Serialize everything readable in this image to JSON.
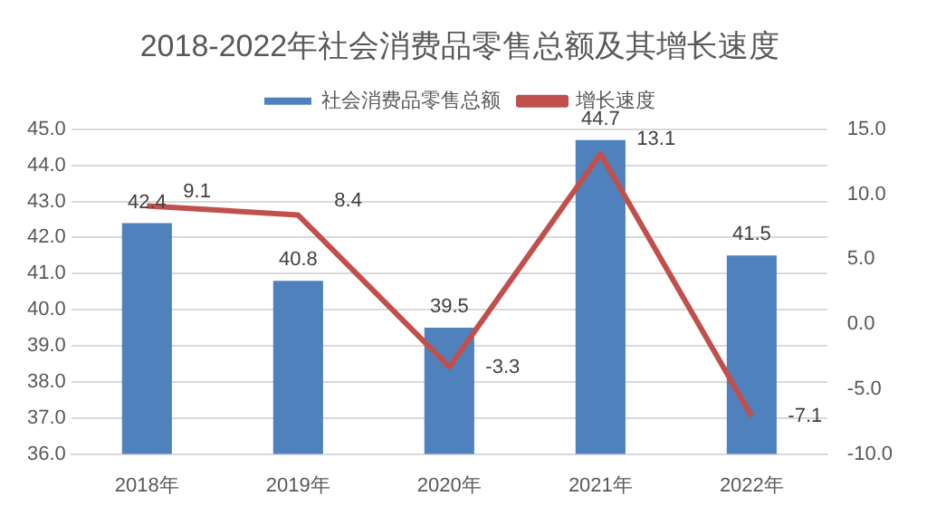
{
  "chart_data": {
    "type": "bar",
    "title": "2018-2022年社会消费品零售总额及其增长速度",
    "categories": [
      "2018年",
      "2019年",
      "2020年",
      "2021年",
      "2022年"
    ],
    "series": [
      {
        "name": "社会消费品零售总额",
        "color": "#4f81bd",
        "values": [
          42.4,
          40.8,
          39.5,
          44.7,
          41.5
        ]
      },
      {
        "name": "增长速度",
        "type": "line",
        "axis": "y2",
        "color": "#c0504d",
        "values": [
          9.1,
          8.4,
          -3.3,
          13.1,
          -7.1
        ]
      }
    ],
    "ylim": [
      36,
      45
    ],
    "yticks": [
      {
        "value": 36,
        "label": "36.0"
      },
      {
        "value": 37,
        "label": "37.0"
      },
      {
        "value": 38,
        "label": "38.0"
      },
      {
        "value": 39,
        "label": "39.0"
      },
      {
        "value": 40,
        "label": "40.0"
      },
      {
        "value": 41,
        "label": "41.0"
      },
      {
        "value": 42,
        "label": "42.0"
      },
      {
        "value": 43,
        "label": "43.0"
      },
      {
        "value": 44,
        "label": "44.0"
      },
      {
        "value": 45,
        "label": "45.0"
      }
    ],
    "y2lim": [
      -10,
      15
    ],
    "y2ticks": [
      {
        "value": -10,
        "label": "-10.0"
      },
      {
        "value": -5,
        "label": "-5.0"
      },
      {
        "value": 0,
        "label": "0.0"
      },
      {
        "value": 5,
        "label": "5.0"
      },
      {
        "value": 10,
        "label": "10.0"
      },
      {
        "value": 15,
        "label": "15.0"
      }
    ],
    "grid": "y",
    "legend": "top",
    "marker": "none",
    "data_labels": true
  }
}
